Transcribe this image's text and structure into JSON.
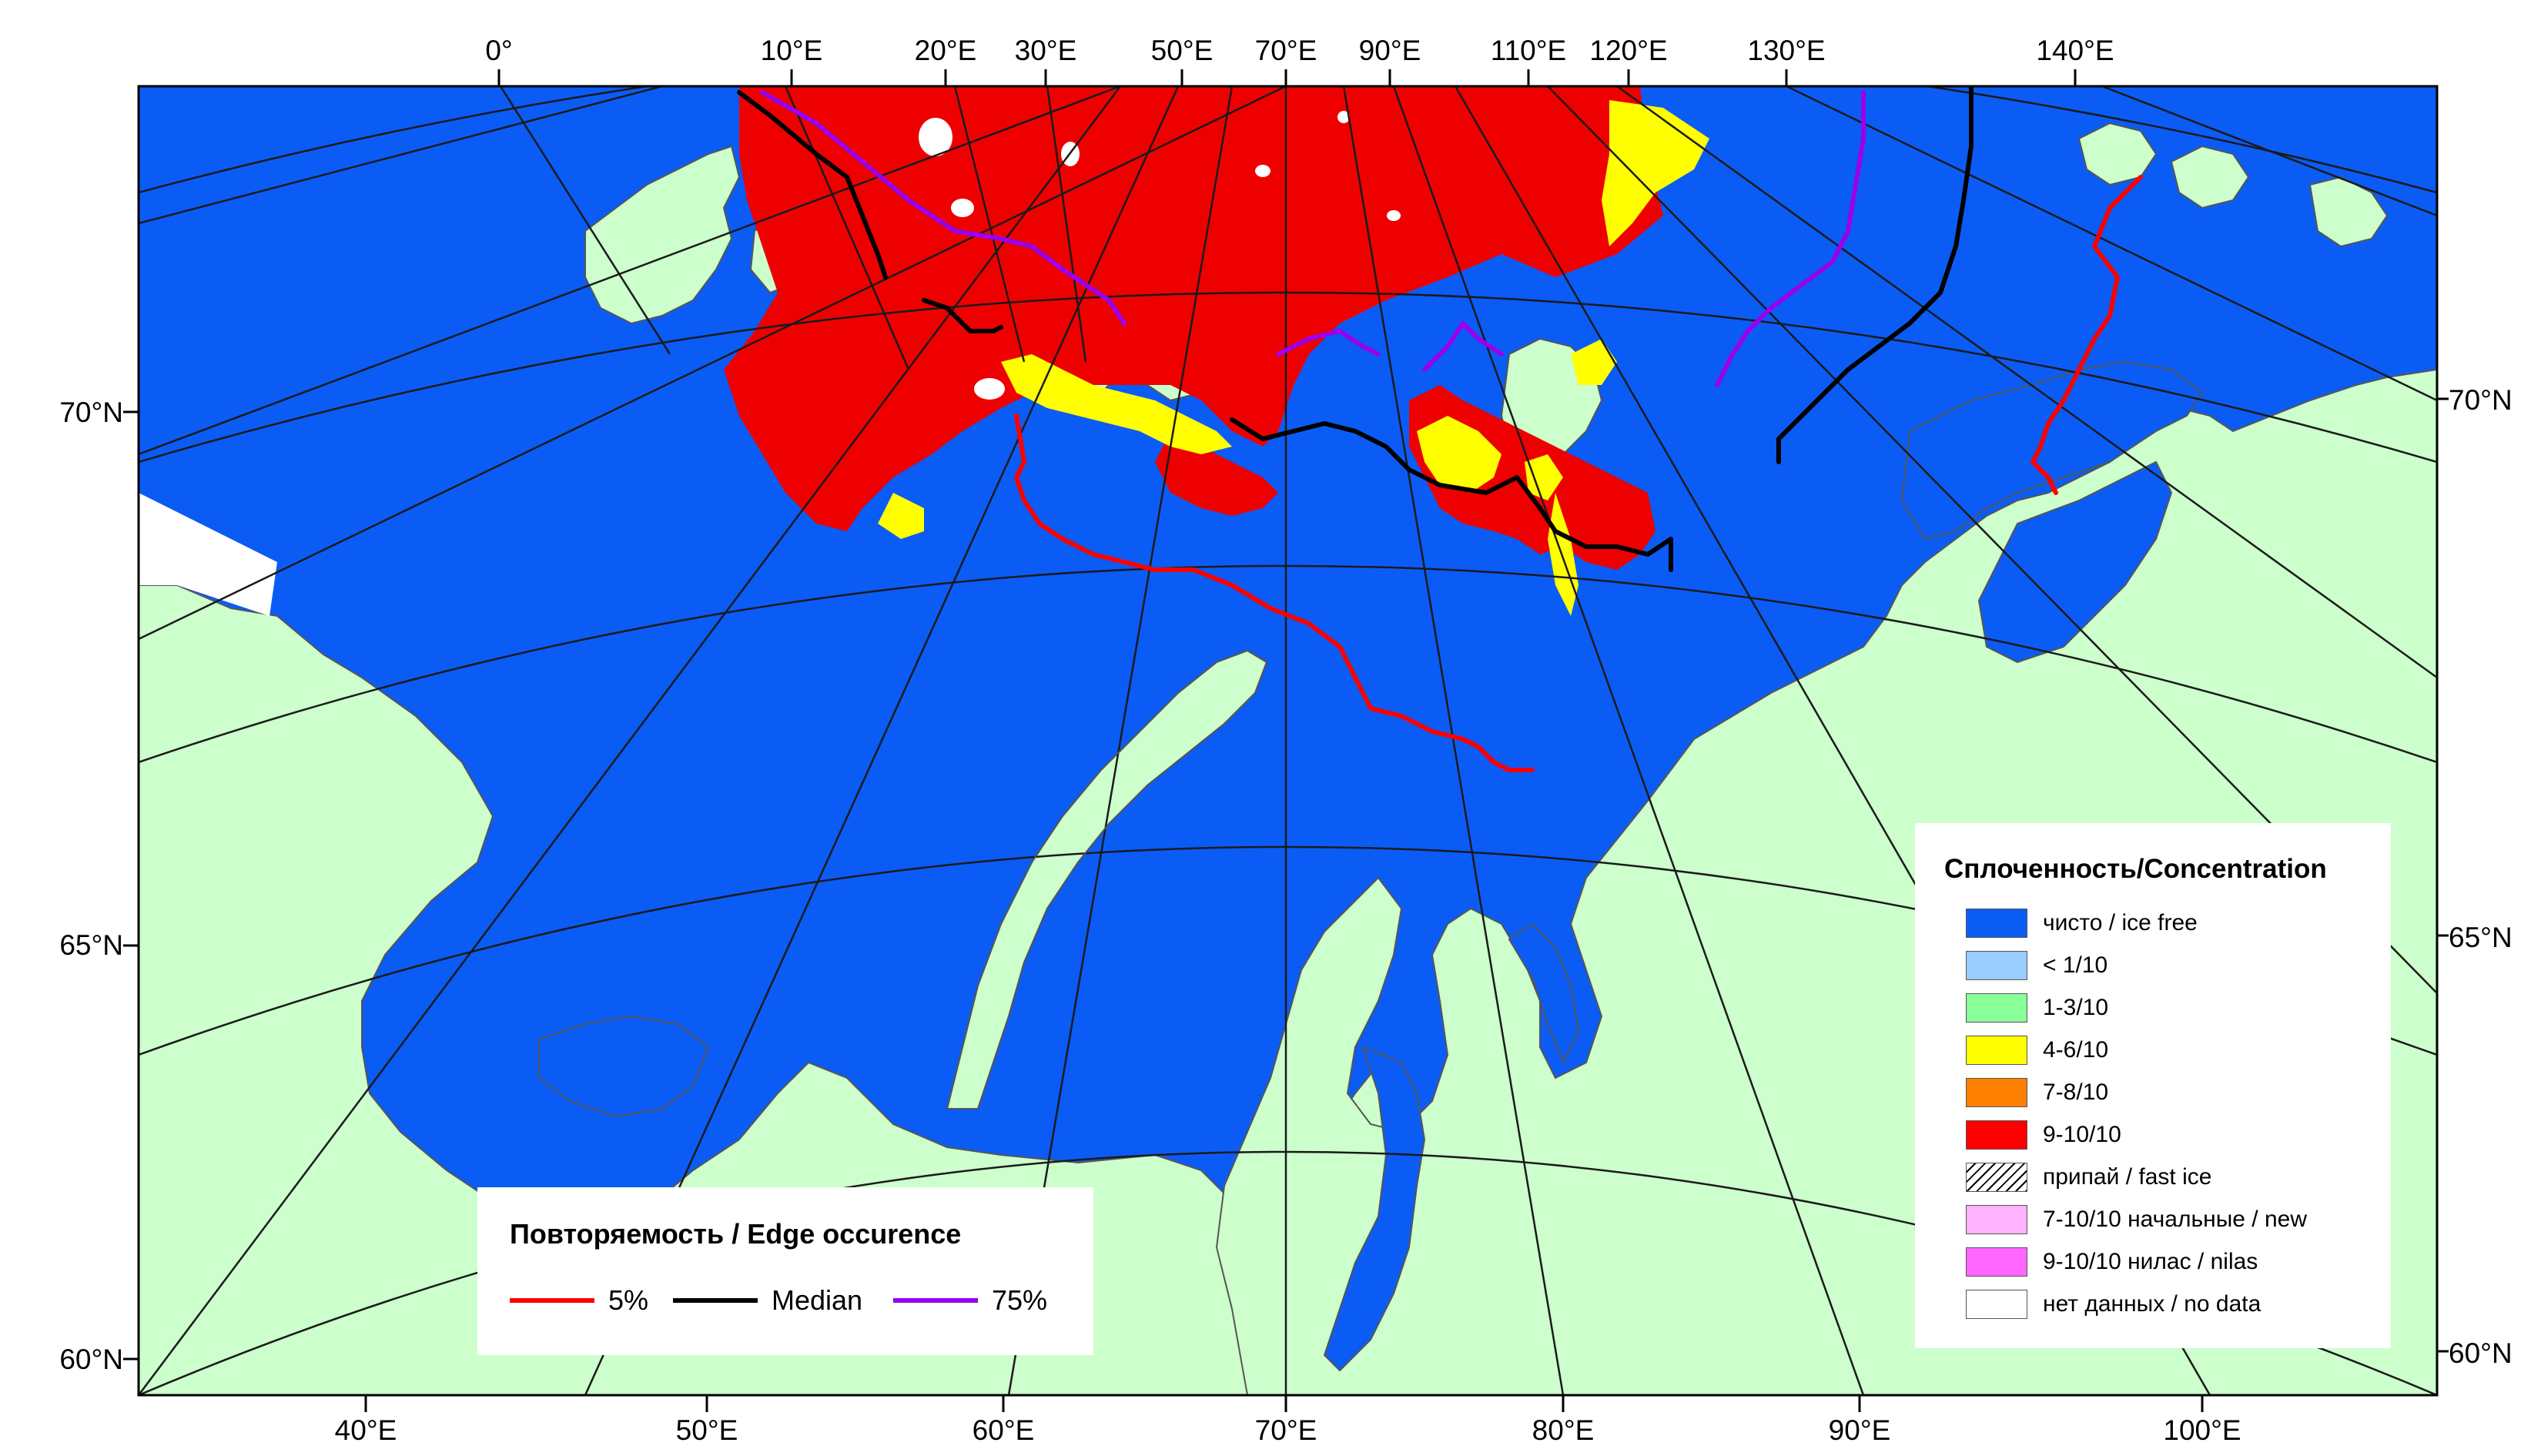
{
  "map": {
    "colors": {
      "water": "#0a5cf5",
      "land": "#ccffcc",
      "ice_9_10": "#ee0000",
      "ice_4_6": "#ffff00",
      "no_data": "#ffffff",
      "grid": "#1a1a1a",
      "coast": "#555555"
    },
    "top_longitude_labels": [
      "0°",
      "10°E",
      "20°E",
      "30°E",
      "50°E",
      "70°E",
      "90°E",
      "110°E",
      "120°E",
      "130°E",
      "140°E"
    ],
    "bottom_longitude_labels": [
      "40°E",
      "50°E",
      "60°E",
      "70°E",
      "80°E",
      "90°E",
      "100°E"
    ],
    "left_latitude_labels": [
      "70°N",
      "65°N",
      "60°N"
    ],
    "right_latitude_labels": [
      "70°N",
      "65°N",
      "60°N"
    ]
  },
  "concentration_legend": {
    "title": "Сплоченность/Concentration",
    "items": [
      {
        "label": "чисто / ice free",
        "color": "#0a5cf5",
        "pattern": "solid"
      },
      {
        "label": "< 1/10",
        "color": "#99ccff",
        "pattern": "solid"
      },
      {
        "label": "1-3/10",
        "color": "#88ff99",
        "pattern": "solid"
      },
      {
        "label": "4-6/10",
        "color": "#ffff00",
        "pattern": "solid"
      },
      {
        "label": "7-8/10",
        "color": "#ff8000",
        "pattern": "solid"
      },
      {
        "label": "9-10/10",
        "color": "#ff0000",
        "pattern": "solid"
      },
      {
        "label": "припай / fast ice",
        "color": "#ffffff",
        "pattern": "hatch"
      },
      {
        "label": "7-10/10 начальные / new",
        "color": "#ffb3ff",
        "pattern": "solid"
      },
      {
        "label": "9-10/10 нилас / nilas",
        "color": "#ff66ff",
        "pattern": "solid"
      },
      {
        "label": "нет данных / no data",
        "color": "#ffffff",
        "pattern": "solid"
      }
    ]
  },
  "edge_legend": {
    "title": "Повторяемость / Edge occurence",
    "items": [
      {
        "label": "5%",
        "color": "#ff0000"
      },
      {
        "label": "Median",
        "color": "#000000"
      },
      {
        "label": "75%",
        "color": "#9900ee"
      }
    ]
  }
}
